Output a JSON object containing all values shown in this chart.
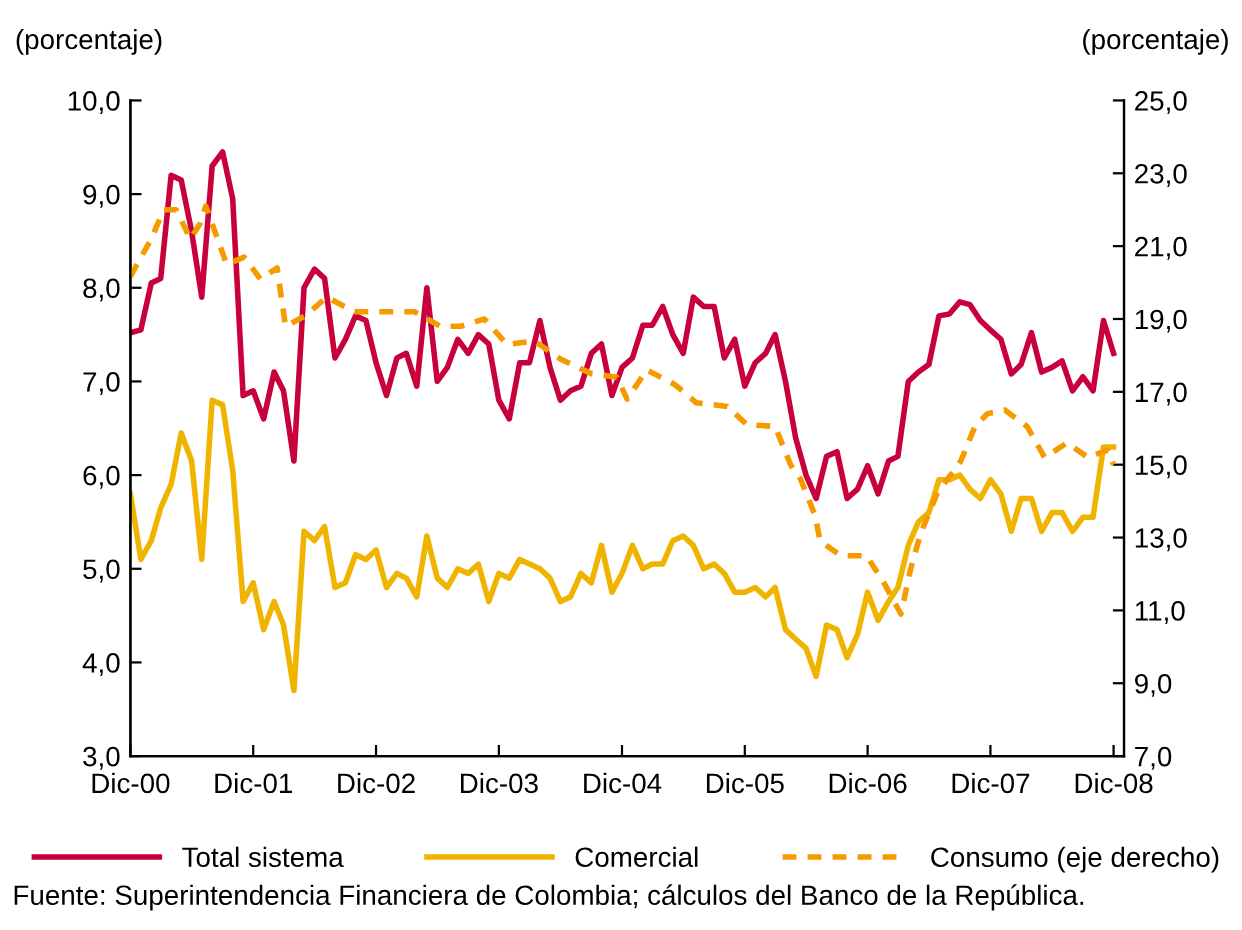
{
  "chart_data": {
    "type": "line",
    "ylabel": "(porcentaje)",
    "y2label": "(porcentaje)",
    "x": [
      "2000-12",
      "2001-01",
      "2001-02",
      "2001-03",
      "2001-04",
      "2001-05",
      "2001-06",
      "2001-07",
      "2001-08",
      "2001-09",
      "2001-10",
      "2001-11",
      "2001-12",
      "2002-01",
      "2002-02",
      "2002-03",
      "2002-04",
      "2002-05",
      "2002-06",
      "2002-07",
      "2002-08",
      "2002-09",
      "2002-10",
      "2002-11",
      "2002-12",
      "2003-01",
      "2003-02",
      "2003-03",
      "2003-04",
      "2003-05",
      "2003-06",
      "2003-07",
      "2003-08",
      "2003-09",
      "2003-10",
      "2003-11",
      "2003-12",
      "2004-01",
      "2004-02",
      "2004-03",
      "2004-04",
      "2004-05",
      "2004-06",
      "2004-07",
      "2004-08",
      "2004-09",
      "2004-10",
      "2004-11",
      "2004-12",
      "2005-01",
      "2005-02",
      "2005-03",
      "2005-04",
      "2005-05",
      "2005-06",
      "2005-07",
      "2005-08",
      "2005-09",
      "2005-10",
      "2005-11",
      "2005-12",
      "2006-01",
      "2006-02",
      "2006-03",
      "2006-04",
      "2006-05",
      "2006-06",
      "2006-07",
      "2006-08",
      "2006-09",
      "2006-10",
      "2006-11",
      "2006-12",
      "2007-01",
      "2007-02",
      "2007-03",
      "2007-04",
      "2007-05",
      "2007-06",
      "2007-07",
      "2007-08",
      "2007-09",
      "2007-10",
      "2007-11",
      "2007-12",
      "2008-01",
      "2008-02",
      "2008-03",
      "2008-04",
      "2008-05",
      "2008-06",
      "2008-07",
      "2008-08",
      "2008-09",
      "2008-10",
      "2008-11",
      "2008-12"
    ],
    "series": [
      {
        "name": "Total sistema",
        "color": "#c8003c",
        "line_style": "solid",
        "values": [
          7.52,
          7.55,
          8.05,
          8.1,
          9.2,
          9.15,
          8.6,
          7.9,
          9.3,
          9.45,
          8.95,
          6.85,
          6.9,
          6.6,
          7.1,
          6.9,
          6.15,
          8.0,
          8.2,
          8.1,
          7.25,
          7.45,
          7.7,
          7.65,
          7.2,
          6.85,
          7.25,
          7.3,
          6.95,
          8.0,
          7.0,
          7.15,
          7.45,
          7.3,
          7.5,
          7.4,
          6.8,
          6.6,
          7.2,
          7.2,
          7.65,
          7.15,
          6.8,
          6.9,
          6.95,
          7.3,
          7.4,
          6.85,
          7.15,
          7.25,
          7.6,
          7.6,
          7.8,
          7.5,
          7.3,
          7.9,
          7.8,
          7.8,
          7.25,
          7.45,
          6.95,
          7.2,
          7.3,
          7.5,
          7.0,
          6.4,
          6.0,
          5.75,
          6.2,
          6.25,
          5.75,
          5.85,
          6.1,
          5.8,
          6.15,
          6.2,
          7.0,
          7.1,
          7.18,
          7.7,
          7.72,
          7.85,
          7.82,
          7.65,
          7.55,
          7.45,
          7.08,
          7.18,
          7.52,
          7.1,
          7.15,
          7.22,
          6.9,
          7.05,
          6.9,
          7.65,
          7.3
        ]
      },
      {
        "name": "Comercial",
        "color": "#f0b400",
        "line_style": "solid",
        "values": [
          5.8,
          5.1,
          5.3,
          5.65,
          5.9,
          6.45,
          6.15,
          5.1,
          6.8,
          6.75,
          6.05,
          4.65,
          4.85,
          4.35,
          4.65,
          4.4,
          3.7,
          5.4,
          5.3,
          5.45,
          4.8,
          4.85,
          5.15,
          5.1,
          5.2,
          4.8,
          4.95,
          4.9,
          4.7,
          5.35,
          4.9,
          4.8,
          5.0,
          4.95,
          5.05,
          4.65,
          4.95,
          4.9,
          5.1,
          5.05,
          5.0,
          4.9,
          4.65,
          4.7,
          4.95,
          4.85,
          5.25,
          4.75,
          4.95,
          5.25,
          5.0,
          5.05,
          5.05,
          5.3,
          5.35,
          5.25,
          5.0,
          5.05,
          4.95,
          4.75,
          4.75,
          4.8,
          4.7,
          4.8,
          4.35,
          4.25,
          4.15,
          3.85,
          4.4,
          4.35,
          4.05,
          4.3,
          4.75,
          4.45,
          4.65,
          4.8,
          5.25,
          5.5,
          5.6,
          5.95,
          5.95,
          6.0,
          5.85,
          5.75,
          5.95,
          5.8,
          5.4,
          5.75,
          5.75,
          5.4,
          5.6,
          5.6,
          5.4,
          5.55,
          5.55,
          6.3,
          6.3
        ]
      },
      {
        "name": "Consumo (eje derecho)",
        "color": "#f59b00",
        "line_style": "dashed",
        "axis": "y2",
        "x": [
          "2000-12-01",
          "2001-02-01",
          "2001-03-10",
          "2001-04-16",
          "2001-05-28",
          "2001-06-25",
          "2001-07-13",
          "2001-08-13",
          "2001-09-13",
          "2001-11-04",
          "2001-12-22",
          "2002-02-10",
          "2002-03-07",
          "2002-05-07",
          "2002-07-07",
          "2002-09-28",
          "2002-12-25",
          "2003-03-25",
          "2003-06-10",
          "2003-08-10",
          "2003-10-19",
          "2003-12-25",
          "2004-03-16",
          "2004-06-01",
          "2004-09-01",
          "2004-11-16",
          "2004-12-16",
          "2005-02-13",
          "2005-05-07",
          "2005-07-10",
          "2005-10-10",
          "2005-12-07",
          "2006-03-01",
          "2006-04-16",
          "2006-05-16",
          "2006-06-28",
          "2006-07-13",
          "2006-09-13",
          "2006-11-28",
          "2007-01-22",
          "2007-03-10",
          "2007-04-07",
          "2007-05-07",
          "2007-06-25",
          "2007-09-04",
          "2007-10-16",
          "2007-11-22",
          "2008-01-13",
          "2008-03-19",
          "2008-05-10",
          "2008-07-16",
          "2008-09-16",
          "2008-11-13",
          "2008-12-01"
        ],
        "values": [
          20.17,
          21.2,
          22.0,
          22.0,
          21.2,
          21.6,
          22.1,
          21.3,
          20.5,
          20.7,
          20.1,
          20.4,
          18.8,
          19.1,
          19.6,
          19.2,
          19.2,
          19.2,
          18.8,
          18.8,
          19.0,
          18.3,
          18.4,
          17.9,
          17.5,
          17.4,
          16.8,
          17.6,
          17.2,
          16.7,
          16.6,
          16.1,
          16.05,
          15.0,
          14.6,
          13.6,
          12.9,
          12.5,
          12.5,
          11.7,
          10.9,
          12.1,
          13.1,
          14.2,
          15.1,
          16.05,
          16.4,
          16.5,
          16.05,
          15.2,
          15.6,
          15.2,
          15.4,
          15.0
        ]
      }
    ],
    "xlim": [
      "2000-12",
      "2009-01"
    ],
    "xticks": [
      {
        "value": "2000-12",
        "label": "Dic-00"
      },
      {
        "value": "2001-12",
        "label": "Dic-01"
      },
      {
        "value": "2002-12",
        "label": "Dic-02"
      },
      {
        "value": "2003-12",
        "label": "Dic-03"
      },
      {
        "value": "2004-12",
        "label": "Dic-04"
      },
      {
        "value": "2005-12",
        "label": "Dic-05"
      },
      {
        "value": "2006-12",
        "label": "Dic-06"
      },
      {
        "value": "2007-12",
        "label": "Dic-07"
      },
      {
        "value": "2008-12",
        "label": "Dic-08"
      }
    ],
    "ylim": [
      3,
      10
    ],
    "yticks": [
      {
        "value": 3,
        "label": "3,0"
      },
      {
        "value": 4,
        "label": "4,0"
      },
      {
        "value": 5,
        "label": "5,0"
      },
      {
        "value": 6,
        "label": "6,0"
      },
      {
        "value": 7,
        "label": "7,0"
      },
      {
        "value": 8,
        "label": "8,0"
      },
      {
        "value": 9,
        "label": "9,0"
      },
      {
        "value": 10,
        "label": "10,0"
      }
    ],
    "y2lim": [
      7,
      25
    ],
    "y2ticks": [
      {
        "value": 7,
        "label": "7,0"
      },
      {
        "value": 9,
        "label": "9,0"
      },
      {
        "value": 11,
        "label": "11,0"
      },
      {
        "value": 13,
        "label": "13,0"
      },
      {
        "value": 15,
        "label": "15,0"
      },
      {
        "value": 17,
        "label": "17,0"
      },
      {
        "value": 19,
        "label": "19,0"
      },
      {
        "value": 21,
        "label": "21,0"
      },
      {
        "value": 23,
        "label": "23,0"
      },
      {
        "value": 25,
        "label": "25,0"
      }
    ],
    "grid": false,
    "legend": "bottom",
    "marker": "none",
    "annotations": [
      "Fuente: Superintendencia Financiera de Colombia; cálculos del Banco de la República."
    ]
  }
}
